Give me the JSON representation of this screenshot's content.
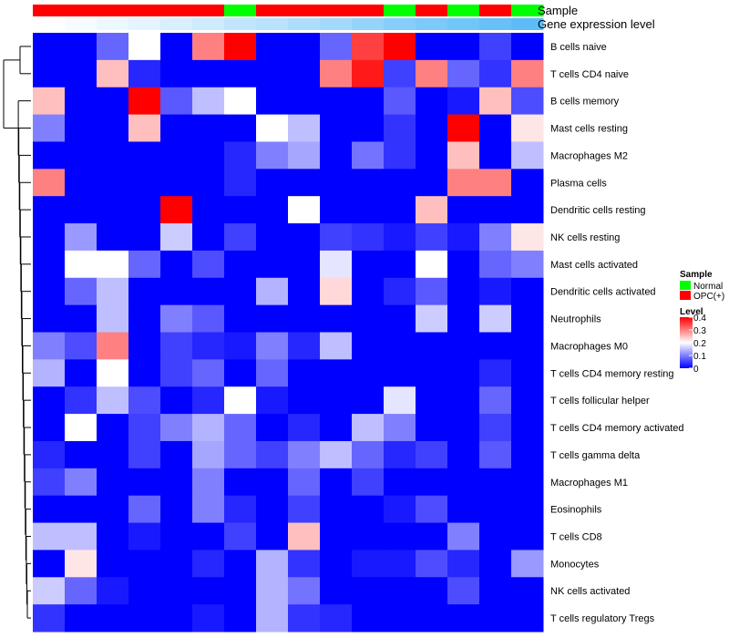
{
  "chart_data": {
    "type": "heatmap",
    "title": "",
    "annotations": {
      "sample_label": "Sample",
      "gene_label": "Gene expression level",
      "sample": [
        "OPC(+)",
        "OPC(+)",
        "OPC(+)",
        "OPC(+)",
        "OPC(+)",
        "OPC(+)",
        "Normal",
        "OPC(+)",
        "OPC(+)",
        "OPC(+)",
        "OPC(+)",
        "Normal",
        "OPC(+)",
        "Normal",
        "OPC(+)",
        "Normal"
      ],
      "gene_level": [
        0.0,
        0.05,
        0.1,
        0.15,
        0.22,
        0.28,
        0.35,
        0.4,
        0.46,
        0.52,
        0.6,
        0.68,
        0.74,
        0.8,
        0.86,
        0.92
      ]
    },
    "rows": [
      "B cells naive",
      "T cells CD4 naive",
      "B cells memory",
      "Mast cells resting",
      "Macrophages M2",
      "Plasma cells",
      "Dendritic cells resting",
      "NK cells resting",
      "Mast cells activated",
      "Dendritic cells activated",
      "Neutrophils",
      "Macrophages M0",
      "T cells CD4 memory resting",
      "T cells follicular helper",
      "T cells CD4 memory activated",
      "T cells gamma delta",
      "Macrophages M1",
      "Eosinophils",
      "T cells CD8",
      "Monocytes",
      "NK cells activated",
      "T cells regulatory  Tregs"
    ],
    "values": [
      [
        0,
        0,
        0.08,
        0.2,
        0,
        0.3,
        0.4,
        0,
        0,
        0.08,
        0.35,
        0.4,
        0,
        0,
        0.05,
        0
      ],
      [
        0,
        0,
        0.25,
        0.03,
        0,
        0,
        0,
        0,
        0,
        0.3,
        0.38,
        0.05,
        0.3,
        0.08,
        0.04,
        0.3
      ],
      [
        0.25,
        0,
        0,
        0.4,
        0.07,
        0.15,
        0.2,
        0,
        0,
        0,
        0,
        0.07,
        0,
        0.02,
        0.25,
        0.06
      ],
      [
        0.1,
        0,
        0,
        0.25,
        0,
        0,
        0,
        0.2,
        0.15,
        0,
        0,
        0.04,
        0,
        0.4,
        0,
        0.22
      ],
      [
        0,
        0,
        0,
        0,
        0,
        0,
        0.03,
        0.1,
        0.13,
        0,
        0.09,
        0.04,
        0,
        0.25,
        0,
        0.15
      ],
      [
        0.3,
        0,
        0,
        0,
        0,
        0,
        0.03,
        0,
        0,
        0,
        0,
        0,
        0,
        0.3,
        0.3,
        0
      ],
      [
        0,
        0,
        0,
        0,
        0.4,
        0,
        0,
        0,
        0.2,
        0,
        0,
        0,
        0.25,
        0,
        0,
        0
      ],
      [
        0,
        0.12,
        0,
        0,
        0.16,
        0,
        0.05,
        0,
        0,
        0.05,
        0.04,
        0.02,
        0.05,
        0.02,
        0.1,
        0.22
      ],
      [
        0,
        0.2,
        0.2,
        0.08,
        0,
        0.06,
        0,
        0,
        0,
        0.18,
        0,
        0,
        0.2,
        0,
        0.08,
        0.1
      ],
      [
        0,
        0.08,
        0.15,
        0,
        0,
        0,
        0,
        0.14,
        0,
        0.23,
        0,
        0.03,
        0.07,
        0,
        0.02,
        0
      ],
      [
        0,
        0,
        0.15,
        0,
        0.1,
        0.07,
        0,
        0,
        0,
        0,
        0,
        0,
        0.16,
        0,
        0.16,
        0
      ],
      [
        0.1,
        0.06,
        0.3,
        0,
        0.05,
        0.03,
        0.02,
        0.1,
        0.03,
        0.15,
        0,
        0,
        0,
        0,
        0,
        0
      ],
      [
        0.14,
        0,
        0.2,
        0,
        0.05,
        0.08,
        0,
        0.08,
        0,
        0,
        0,
        0,
        0,
        0,
        0.03,
        0
      ],
      [
        0,
        0.04,
        0.15,
        0.06,
        0,
        0.03,
        0.2,
        0.02,
        0,
        0,
        0,
        0.18,
        0,
        0,
        0.08,
        0
      ],
      [
        0,
        0.2,
        0,
        0.05,
        0.1,
        0.14,
        0.08,
        0,
        0.03,
        0,
        0.15,
        0.1,
        0,
        0,
        0.05,
        0
      ],
      [
        0.03,
        0,
        0,
        0.05,
        0,
        0.13,
        0.08,
        0.05,
        0.1,
        0.15,
        0.08,
        0.03,
        0.05,
        0,
        0.07,
        0
      ],
      [
        0.05,
        0.1,
        0,
        0,
        0,
        0.1,
        0,
        0,
        0.08,
        0,
        0.05,
        0,
        0,
        0,
        0,
        0
      ],
      [
        0,
        0,
        0,
        0.08,
        0,
        0.1,
        0.03,
        0,
        0.05,
        0,
        0,
        0.02,
        0.06,
        0,
        0,
        0
      ],
      [
        0.15,
        0.15,
        0,
        0.02,
        0,
        0,
        0.05,
        0,
        0.25,
        0,
        0,
        0,
        0,
        0.1,
        0,
        0
      ],
      [
        0,
        0.22,
        0,
        0,
        0,
        0.03,
        0,
        0.14,
        0.04,
        0,
        0.02,
        0.02,
        0.06,
        0.03,
        0,
        0.12
      ],
      [
        0.16,
        0.08,
        0.02,
        0,
        0,
        0,
        0,
        0.14,
        0.09,
        0,
        0,
        0,
        0,
        0.06,
        0,
        0
      ],
      [
        0.04,
        0,
        0,
        0,
        0,
        0.02,
        0,
        0.14,
        0.04,
        0.03,
        0,
        0,
        0,
        0,
        0,
        0
      ]
    ],
    "legend": {
      "sample_title": "Sample",
      "sample_items": [
        {
          "label": "Normal",
          "color": "#00ff00"
        },
        {
          "label": "OPC(+)",
          "color": "#ff0000"
        }
      ],
      "level_title": "Level",
      "level_ticks": [
        "0.4",
        "0.3",
        "0.2",
        "0.1",
        "0"
      ],
      "level_tick_values": [
        0.4,
        0.3,
        0.2,
        0.1,
        0
      ],
      "level_range": [
        0,
        0.4
      ]
    },
    "colors": {
      "low": "#0000ff",
      "mid": "#ffffff",
      "high": "#ff0000",
      "normal": "#00ff00",
      "opc": "#ff0000",
      "gene_low": "#ffffff",
      "gene_high": "#4fb6f7"
    },
    "dendrogram_color": "#000000"
  }
}
